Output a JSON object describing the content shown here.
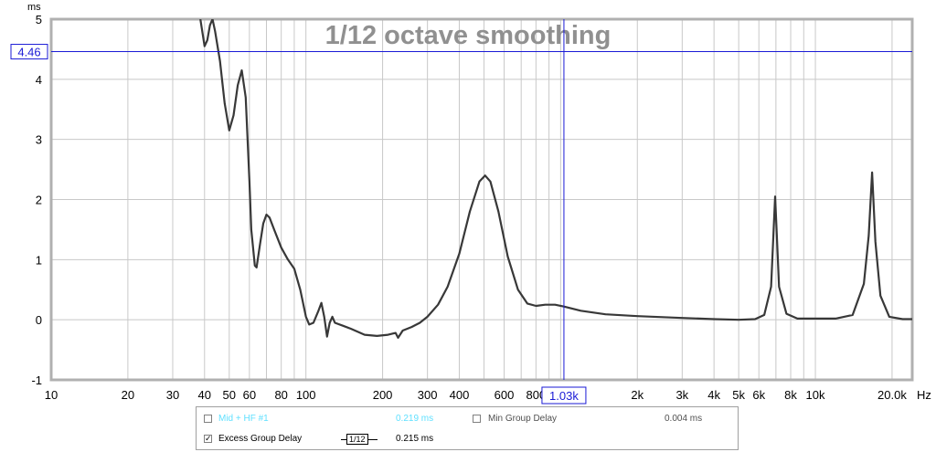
{
  "chart_data": {
    "type": "line",
    "title": "1/12 octave smoothing",
    "ylabel": "ms",
    "xunit": "Hz",
    "xscale": "log",
    "xlim": [
      10,
      24000
    ],
    "ylim": [
      -1,
      5
    ],
    "yticks": [
      -1,
      0,
      1,
      2,
      3,
      4,
      5
    ],
    "xticks": [
      {
        "v": 10,
        "label": "10"
      },
      {
        "v": 20,
        "label": "20"
      },
      {
        "v": 30,
        "label": "30"
      },
      {
        "v": 40,
        "label": "40"
      },
      {
        "v": 50,
        "label": "50"
      },
      {
        "v": 60,
        "label": "60"
      },
      {
        "v": 80,
        "label": "80"
      },
      {
        "v": 100,
        "label": "100"
      },
      {
        "v": 200,
        "label": "200"
      },
      {
        "v": 300,
        "label": "300"
      },
      {
        "v": 400,
        "label": "400"
      },
      {
        "v": 600,
        "label": "600"
      },
      {
        "v": 800,
        "label": "800"
      },
      {
        "v": 2000,
        "label": "2k"
      },
      {
        "v": 3000,
        "label": "3k"
      },
      {
        "v": 4000,
        "label": "4k"
      },
      {
        "v": 5000,
        "label": "5k"
      },
      {
        "v": 6000,
        "label": "6k"
      },
      {
        "v": 8000,
        "label": "8k"
      },
      {
        "v": 10000,
        "label": "10k"
      },
      {
        "v": 20000,
        "label": "20.0k"
      }
    ],
    "grid": true,
    "cursor": {
      "x": 1030,
      "y": 4.46,
      "x_label": "1.03k",
      "y_label": "4.46"
    },
    "series": [
      {
        "name": "Excess Group Delay",
        "color": "#383838",
        "points": [
          [
            38.5,
            5.0
          ],
          [
            40.0,
            4.55
          ],
          [
            41.0,
            4.65
          ],
          [
            42.0,
            4.9
          ],
          [
            43.0,
            5.0
          ],
          [
            44.0,
            4.8
          ],
          [
            46.0,
            4.3
          ],
          [
            48.0,
            3.6
          ],
          [
            50.0,
            3.15
          ],
          [
            52.0,
            3.4
          ],
          [
            54.0,
            3.9
          ],
          [
            56.0,
            4.15
          ],
          [
            58.0,
            3.7
          ],
          [
            60.0,
            2.3
          ],
          [
            61.0,
            1.5
          ],
          [
            63.0,
            0.9
          ],
          [
            64.0,
            0.87
          ],
          [
            66.0,
            1.25
          ],
          [
            68.0,
            1.6
          ],
          [
            70.0,
            1.75
          ],
          [
            72.0,
            1.7
          ],
          [
            75.0,
            1.5
          ],
          [
            80.0,
            1.2
          ],
          [
            85.0,
            1.0
          ],
          [
            90.0,
            0.85
          ],
          [
            95.0,
            0.5
          ],
          [
            100.0,
            0.05
          ],
          [
            103.0,
            -0.08
          ],
          [
            107.0,
            -0.05
          ],
          [
            112.0,
            0.15
          ],
          [
            115.0,
            0.28
          ],
          [
            118.0,
            0.05
          ],
          [
            121.0,
            -0.28
          ],
          [
            124.0,
            -0.05
          ],
          [
            127.0,
            0.05
          ],
          [
            130.0,
            -0.05
          ],
          [
            140.0,
            -0.1
          ],
          [
            150.0,
            -0.15
          ],
          [
            170.0,
            -0.25
          ],
          [
            190.0,
            -0.27
          ],
          [
            210.0,
            -0.25
          ],
          [
            225.0,
            -0.22
          ],
          [
            230.0,
            -0.3
          ],
          [
            240.0,
            -0.18
          ],
          [
            260.0,
            -0.12
          ],
          [
            280.0,
            -0.05
          ],
          [
            300.0,
            0.05
          ],
          [
            330.0,
            0.25
          ],
          [
            360.0,
            0.55
          ],
          [
            400.0,
            1.1
          ],
          [
            440.0,
            1.8
          ],
          [
            480.0,
            2.3
          ],
          [
            505.0,
            2.4
          ],
          [
            530.0,
            2.3
          ],
          [
            570.0,
            1.8
          ],
          [
            620.0,
            1.05
          ],
          [
            680.0,
            0.5
          ],
          [
            740.0,
            0.27
          ],
          [
            800.0,
            0.23
          ],
          [
            870.0,
            0.25
          ],
          [
            950.0,
            0.25
          ],
          [
            1030.0,
            0.22
          ],
          [
            1200.0,
            0.15
          ],
          [
            1500.0,
            0.09
          ],
          [
            2000.0,
            0.06
          ],
          [
            3000.0,
            0.03
          ],
          [
            4000.0,
            0.01
          ],
          [
            5000.0,
            0.0
          ],
          [
            5800.0,
            0.01
          ],
          [
            6300.0,
            0.08
          ],
          [
            6700.0,
            0.55
          ],
          [
            6950.0,
            2.05
          ],
          [
            7200.0,
            0.55
          ],
          [
            7700.0,
            0.1
          ],
          [
            8500.0,
            0.02
          ],
          [
            10000.0,
            0.02
          ],
          [
            12000.0,
            0.02
          ],
          [
            14000.0,
            0.08
          ],
          [
            15500.0,
            0.6
          ],
          [
            16200.0,
            1.4
          ],
          [
            16700.0,
            2.45
          ],
          [
            17200.0,
            1.3
          ],
          [
            18000.0,
            0.4
          ],
          [
            19500.0,
            0.05
          ],
          [
            22000.0,
            0.01
          ],
          [
            24000.0,
            0.01
          ]
        ]
      }
    ]
  },
  "legend": {
    "row1": {
      "checked": false,
      "label": "Mid + HF #1",
      "value": "0.219 ms",
      "other_checked": false,
      "other_label": "Min Group Delay",
      "other_value": "0.004 ms"
    },
    "row2": {
      "checked": true,
      "label": "Excess Group Delay",
      "smoothing": "1/12",
      "value": "0.215 ms"
    }
  },
  "colors": {
    "grid": "#c8c8c8",
    "frame": "#b0b0b0",
    "cursor": "#1a1ad6",
    "title": "#909090",
    "inactive_series": "#5fe0ff"
  }
}
